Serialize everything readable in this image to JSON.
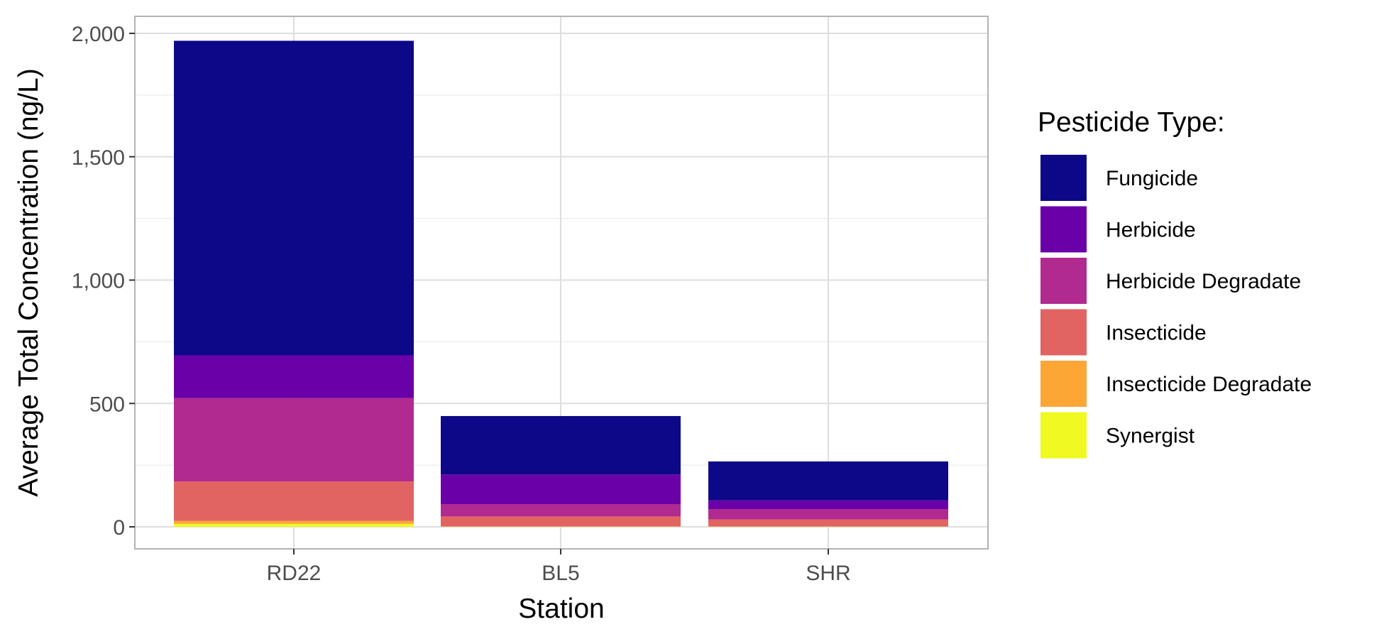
{
  "chart_data": {
    "type": "bar",
    "stacked": true,
    "xlabel": "Station",
    "ylabel": "Average Total Concentration (ng/L)",
    "categories": [
      "RD22",
      "BL5",
      "SHR"
    ],
    "ylim": [
      0,
      2100
    ],
    "yticks": [
      0,
      500,
      1000,
      1500,
      2000
    ],
    "ytick_labels": [
      "0",
      "500",
      "1,000",
      "1,500",
      "2,000"
    ],
    "grid": true,
    "legend_title": "Pesticide Type:",
    "legend_position": "right",
    "series": [
      {
        "name": "Synergist",
        "color": "#F0F921",
        "values": [
          12,
          0,
          0
        ]
      },
      {
        "name": "Insecticide Degradate",
        "color": "#FCA636",
        "values": [
          12,
          2,
          2
        ]
      },
      {
        "name": "Insecticide",
        "color": "#E16462",
        "values": [
          160,
          40,
          28
        ]
      },
      {
        "name": "Herbicide Degradate",
        "color": "#B12A90",
        "values": [
          338,
          50,
          42
        ]
      },
      {
        "name": "Herbicide",
        "color": "#6A00A8",
        "values": [
          173,
          120,
          35
        ]
      },
      {
        "name": "Fungicide",
        "color": "#0D0887",
        "values": [
          1275,
          237,
          158
        ]
      }
    ],
    "legend_order": [
      "Fungicide",
      "Herbicide",
      "Herbicide Degradate",
      "Insecticide",
      "Insecticide Degradate",
      "Synergist"
    ]
  }
}
